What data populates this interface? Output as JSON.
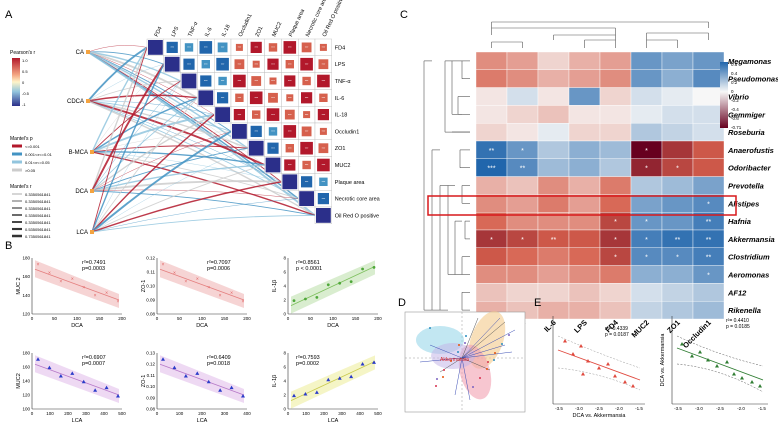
{
  "panels": {
    "A": "A",
    "B": "B",
    "C": "C",
    "D": "D",
    "E": "E"
  },
  "colors": {
    "red": "#b2182b",
    "darkred": "#67001f",
    "blue": "#4393c3",
    "darkblue": "#2166ac",
    "navy": "#2b2f8a",
    "lightred": "#f4a582",
    "lightblue": "#92c5de",
    "pale": "#f7f7f7",
    "highlight": "#d7191c"
  },
  "panelA": {
    "left_nodes": [
      "CA",
      "CDCA",
      "B-MCA",
      "DCA",
      "LCA"
    ],
    "col_labels": [
      "FD4",
      "LPS",
      "TNF-α",
      "IL-6",
      "IL-18",
      "Occludin1",
      "ZO1",
      "MUC2",
      "Plaque area",
      "Necrotic core area",
      "Oil Red O positive"
    ],
    "row_labels": [
      "FD4",
      "LPS",
      "TNF-α",
      "IL-6",
      "IL-18",
      "Occludin1",
      "ZO1",
      "MUC2",
      "Plaque area",
      "Necrotic core area",
      "Oil Red O positive"
    ],
    "pearson_title": "Pearson's r",
    "pearson_ticks": [
      "1.0",
      "0.5",
      "0",
      "-0.5",
      "-1"
    ],
    "mantel_p_title": "Mantel's p",
    "mantel_p_items": [
      "<=0.001",
      "0.001<x<=0.01",
      "0.01<x<=0.05",
      ">0.05"
    ],
    "mantel_r_title": "Mantel's r",
    "mantel_r_items": [
      "0.3350561841",
      "0.3350561841",
      "0.3350561841",
      "0.3350561841",
      "0.3350561841",
      "0.5350561841",
      "0.7350561841"
    ]
  },
  "panelB": {
    "plots": [
      {
        "stat": "r²=0.7491",
        "p": "p=0.0003",
        "ylabel": "MUC 2",
        "xlabel": "DCA",
        "xticks": [
          "0",
          "50",
          "100",
          "150",
          "200"
        ],
        "yticks": [
          "120",
          "140",
          "160",
          "180"
        ]
      },
      {
        "stat": "r²=0.7097",
        "p": "p=0.0006",
        "ylabel": "ZO-1",
        "xlabel": "DCA",
        "xticks": [
          "0",
          "50",
          "100",
          "150",
          "200"
        ],
        "yticks": [
          "0.08",
          "0.09",
          "0.10",
          "0.11",
          "0.12"
        ]
      },
      {
        "stat": "r²=0.8561",
        "p": "p < 0.0001",
        "ylabel": "IL-1β",
        "xlabel": "DCA",
        "xticks": [
          "0",
          "50",
          "100",
          "150",
          "200"
        ],
        "yticks": [
          "0",
          "2",
          "4",
          "6",
          "8"
        ]
      },
      {
        "stat": "r²=0.6907",
        "p": "p=0.0007",
        "ylabel": "MUC2",
        "xlabel": "LCA",
        "xticks": [
          "0",
          "100",
          "200",
          "300",
          "400",
          "500"
        ],
        "yticks": [
          "100",
          "120",
          "140",
          "160",
          "180"
        ]
      },
      {
        "stat": "r²=0.6409",
        "p": "p=0.0018",
        "ylabel": "ZO-1",
        "xlabel": "LCA",
        "xticks": [
          "0",
          "100",
          "200",
          "300",
          "400"
        ],
        "yticks": [
          "0.08",
          "0.09",
          "0.10",
          "0.11",
          "0.12",
          "0.13"
        ]
      },
      {
        "stat": "r²=0.7593",
        "p": "p=0.0002",
        "ylabel": "IL-1β",
        "xlabel": "LCA",
        "xticks": [
          "0",
          "100",
          "200",
          "300",
          "400",
          "500"
        ],
        "yticks": [
          "0",
          "2",
          "4",
          "6",
          "8"
        ]
      }
    ]
  },
  "panelC": {
    "columns": [
      "IL1-β",
      "TNF-α",
      "IL-6",
      "LPS",
      "FD4",
      "MUC2",
      "ZO1",
      "Occludin1"
    ],
    "rows": [
      "Megamonas",
      "Pseudomonas",
      "Vibrio",
      "Gemmiger",
      "Roseburia",
      "Anaerofustis",
      "Odoribacter",
      "Prevotella",
      "Alistipes",
      "Hafnia",
      "Akkermansia",
      "Clostridium",
      "Aeromonas",
      "AF12",
      "Rikenella"
    ],
    "highlighted_row": "Akkermansia",
    "legend_ticks": [
      "0.6",
      "0.4",
      "0.2",
      "0",
      "-0.2",
      "-0.4",
      "-0.6",
      "-0.71"
    ],
    "values": [
      [
        -0.3,
        -0.25,
        -0.1,
        -0.2,
        -0.25,
        0.4,
        0.35,
        0.4
      ],
      [
        -0.35,
        -0.3,
        -0.2,
        -0.25,
        -0.3,
        0.4,
        0.3,
        0.45
      ],
      [
        -0.05,
        0.1,
        -0.05,
        0.4,
        -0.1,
        0.1,
        0.05,
        0.0
      ],
      [
        -0.05,
        -0.1,
        -0.15,
        -0.05,
        -0.05,
        0.05,
        0.1,
        0.1
      ],
      [
        -0.1,
        -0.05,
        0.05,
        -0.1,
        -0.1,
        0.2,
        0.15,
        0.1
      ],
      [
        0.55,
        0.4,
        0.2,
        0.3,
        0.25,
        -0.71,
        -0.55,
        -0.45
      ],
      [
        0.6,
        0.45,
        0.25,
        0.3,
        0.2,
        -0.6,
        -0.5,
        -0.45
      ],
      [
        -0.2,
        -0.15,
        -0.3,
        -0.2,
        -0.35,
        0.2,
        0.25,
        0.35
      ],
      [
        -0.3,
        -0.25,
        -0.35,
        -0.25,
        -0.4,
        0.35,
        0.4,
        0.45
      ],
      [
        -0.4,
        -0.3,
        -0.3,
        -0.3,
        -0.5,
        0.4,
        0.4,
        0.5
      ],
      [
        -0.55,
        -0.5,
        -0.45,
        -0.45,
        -0.55,
        0.5,
        0.55,
        0.55
      ],
      [
        -0.45,
        -0.4,
        -0.35,
        -0.4,
        -0.5,
        0.45,
        0.45,
        0.5
      ],
      [
        -0.3,
        -0.3,
        -0.25,
        -0.3,
        -0.35,
        0.3,
        0.3,
        0.4
      ],
      [
        -0.15,
        -0.1,
        -0.1,
        -0.15,
        -0.1,
        0.1,
        0.15,
        0.2
      ],
      [
        -0.2,
        -0.15,
        -0.2,
        -0.2,
        -0.15,
        0.15,
        0.2,
        0.25
      ]
    ],
    "stars": [
      [
        "",
        "",
        "",
        "",
        "",
        "",
        "",
        ""
      ],
      [
        "",
        "",
        "",
        "",
        "",
        "",
        "",
        ""
      ],
      [
        "",
        "",
        "",
        "",
        "",
        "",
        "",
        ""
      ],
      [
        "",
        "",
        "",
        "",
        "",
        "",
        "",
        ""
      ],
      [
        "",
        "",
        "",
        "",
        "",
        "",
        "",
        ""
      ],
      [
        "**",
        "*",
        "",
        "",
        "",
        "*",
        "",
        ""
      ],
      [
        "***",
        "**",
        "",
        "",
        "",
        "*",
        "*",
        ""
      ],
      [
        "",
        "",
        "",
        "",
        "",
        "",
        "",
        ""
      ],
      [
        "",
        "",
        "",
        "",
        "",
        "",
        "",
        "*"
      ],
      [
        "",
        "",
        "",
        "",
        "*",
        "*",
        "",
        "**"
      ],
      [
        "*",
        "*",
        "**",
        "",
        "*",
        "*",
        "**",
        "**"
      ],
      [
        "",
        "",
        "",
        "",
        "*",
        "*",
        "*",
        "**"
      ],
      [
        "",
        "",
        "",
        "",
        "",
        "",
        "",
        "*"
      ],
      [
        "",
        "",
        "",
        "",
        "",
        "",
        "",
        ""
      ],
      [
        "",
        "",
        "",
        "",
        "",
        "",
        "",
        ""
      ]
    ]
  },
  "panelD": {
    "highlight_label": "Akkermansia"
  },
  "panelE": {
    "left": {
      "stat": "r²= 0.4339",
      "p": "p = 0.0187",
      "xlabel": "DCA vs. Akkermansia",
      "xticks": [
        "-3.5",
        "-3.0",
        "-2.5",
        "-2.0",
        "-1.5"
      ]
    },
    "right": {
      "stat": "r²= 0.4410",
      "p": "p = 0.0185",
      "ylabel": "DCA vs. Akkermansia",
      "xticks": [
        "-3.5",
        "-3.0",
        "-2.5",
        "-2.0",
        "-1.5"
      ]
    }
  }
}
